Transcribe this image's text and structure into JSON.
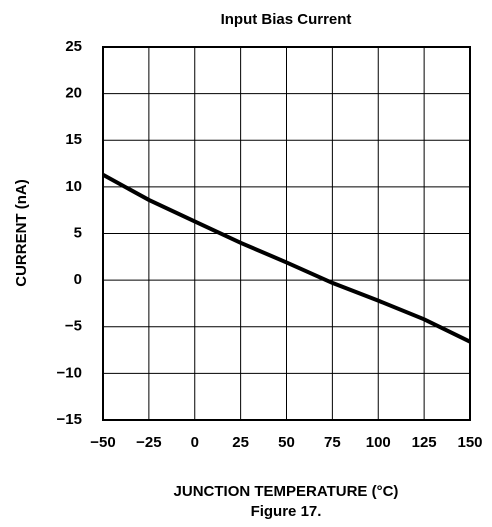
{
  "chart_data": {
    "type": "line",
    "title": "Input Bias Current",
    "xlabel": "JUNCTION TEMPERATURE (°C)",
    "ylabel": "CURRENT (nA)",
    "caption": "Figure 17.",
    "x": [
      -50,
      -25,
      0,
      25,
      50,
      75,
      100,
      125,
      150
    ],
    "series": [
      {
        "name": "Input Bias Current",
        "color": "#000000",
        "values": [
          11.3,
          8.6,
          6.3,
          4.0,
          1.9,
          -0.3,
          -2.2,
          -4.2,
          -6.6
        ]
      }
    ],
    "xlim": [
      -50,
      150
    ],
    "xticks": [
      {
        "value": -50,
        "label": "−50"
      },
      {
        "value": -25,
        "label": "−25"
      },
      0,
      25,
      50,
      75,
      100,
      125,
      150
    ],
    "ylim": [
      -15,
      25
    ],
    "yticks": [
      {
        "value": -15,
        "label": "−15"
      },
      {
        "value": -10,
        "label": "−10"
      },
      {
        "value": -5,
        "label": "−5"
      },
      0,
      5,
      10,
      15,
      20,
      25
    ],
    "grid": true
  }
}
